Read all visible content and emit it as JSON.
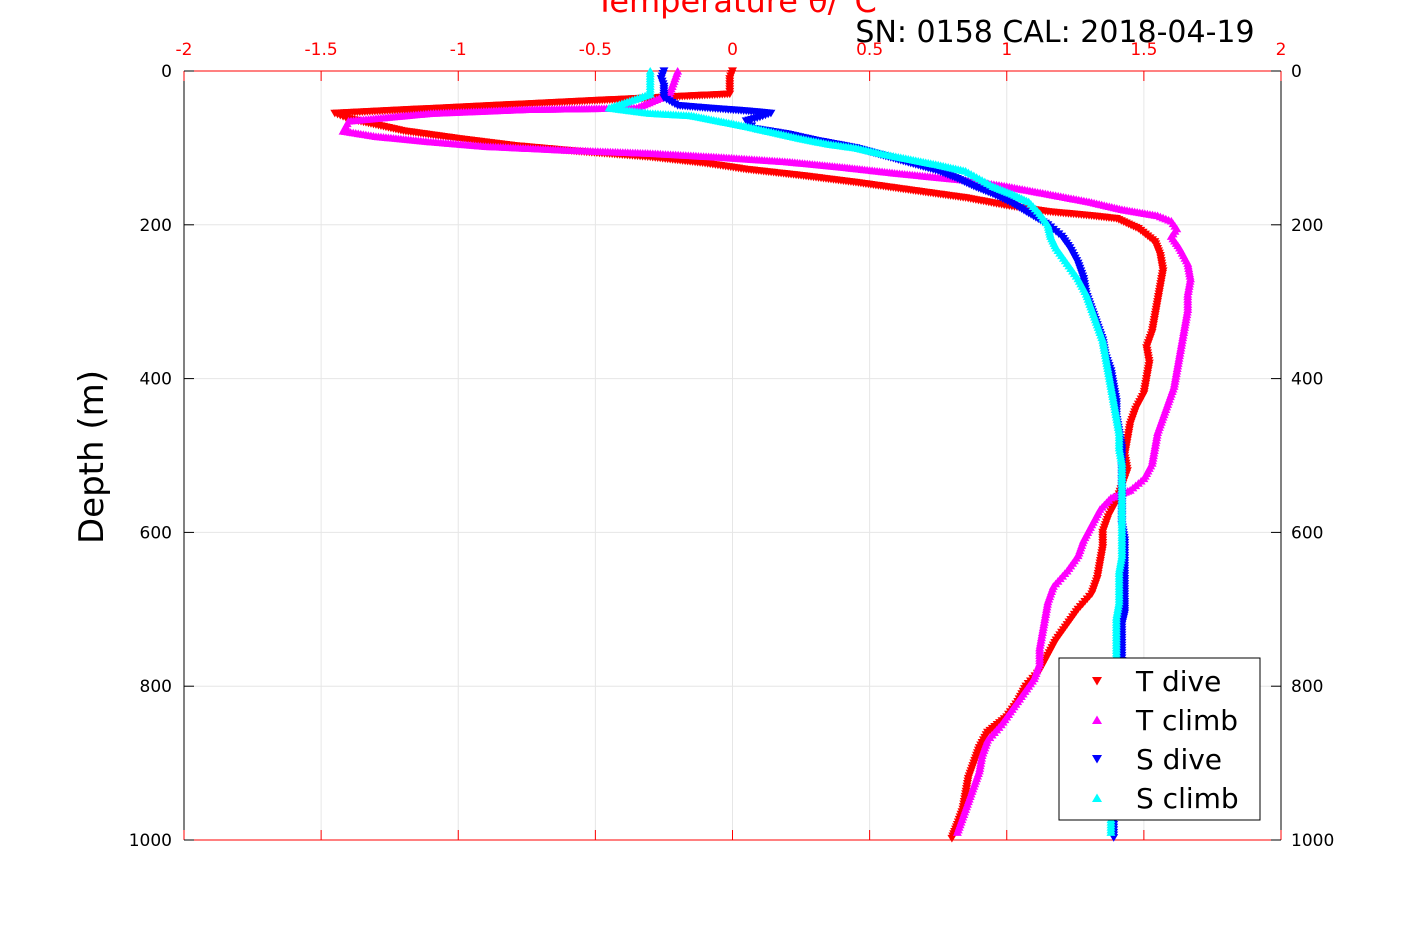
{
  "chart_data": {
    "type": "scatter",
    "title": "SN: 0158  CAL: 2018-04-19",
    "xlabel": "Temperature θ/°C",
    "ylabel": "Depth (m)",
    "xlim": [
      -2,
      2
    ],
    "ylim": [
      0,
      1000
    ],
    "y_reversed": true,
    "x_axis_location": "top",
    "xticks": [
      "-2",
      "-1.5",
      "-1",
      "-0.5",
      "0",
      "0.5",
      "1",
      "1.5",
      "2"
    ],
    "yticks": [
      "0",
      "200",
      "400",
      "600",
      "800",
      "1000"
    ],
    "grid": true,
    "legend_placement": "bottom-right",
    "series": [
      {
        "name": "T dive",
        "marker": "triangle-down",
        "color": "#ff0000",
        "points": [
          [
            0,
            0
          ],
          [
            -0.01,
            10
          ],
          [
            -0.01,
            20
          ],
          [
            -0.01,
            30
          ],
          [
            -1.45,
            55
          ],
          [
            -1.4,
            62
          ],
          [
            -1.3,
            70
          ],
          [
            -1.2,
            78
          ],
          [
            -1.0,
            88
          ],
          [
            -0.8,
            97
          ],
          [
            -0.55,
            105
          ],
          [
            -0.3,
            112
          ],
          [
            -0.1,
            120
          ],
          [
            0.05,
            128
          ],
          [
            0.25,
            136
          ],
          [
            0.45,
            145
          ],
          [
            0.65,
            155
          ],
          [
            0.85,
            165
          ],
          [
            1.0,
            175
          ],
          [
            1.15,
            183
          ],
          [
            1.3,
            188
          ],
          [
            1.4,
            192
          ],
          [
            1.48,
            205
          ],
          [
            1.54,
            222
          ],
          [
            1.56,
            240
          ],
          [
            1.57,
            260
          ],
          [
            1.56,
            280
          ],
          [
            1.55,
            300
          ],
          [
            1.54,
            320
          ],
          [
            1.53,
            340
          ],
          [
            1.51,
            360
          ],
          [
            1.52,
            380
          ],
          [
            1.51,
            400
          ],
          [
            1.5,
            420
          ],
          [
            1.47,
            440
          ],
          [
            1.45,
            460
          ],
          [
            1.44,
            480
          ],
          [
            1.43,
            500
          ],
          [
            1.44,
            520
          ],
          [
            1.42,
            540
          ],
          [
            1.4,
            560
          ],
          [
            1.37,
            580
          ],
          [
            1.35,
            600
          ],
          [
            1.35,
            620
          ],
          [
            1.34,
            640
          ],
          [
            1.33,
            660
          ],
          [
            1.31,
            680
          ],
          [
            1.26,
            700
          ],
          [
            1.22,
            720
          ],
          [
            1.18,
            740
          ],
          [
            1.15,
            760
          ],
          [
            1.12,
            780
          ],
          [
            1.07,
            800
          ],
          [
            1.04,
            820
          ],
          [
            1.0,
            840
          ],
          [
            0.93,
            860
          ],
          [
            0.9,
            880
          ],
          [
            0.88,
            900
          ],
          [
            0.86,
            920
          ],
          [
            0.85,
            940
          ],
          [
            0.84,
            960
          ],
          [
            0.82,
            980
          ],
          [
            0.8,
            998
          ]
        ]
      },
      {
        "name": "T climb",
        "marker": "triangle-up",
        "color": "#ff00ff",
        "points": [
          [
            -0.2,
            0
          ],
          [
            -0.21,
            10
          ],
          [
            -0.22,
            20
          ],
          [
            -0.23,
            30
          ],
          [
            -0.35,
            48
          ],
          [
            -0.75,
            50
          ],
          [
            -1.1,
            55
          ],
          [
            -1.4,
            65
          ],
          [
            -1.42,
            78
          ],
          [
            -1.3,
            85
          ],
          [
            -1.1,
            92
          ],
          [
            -0.9,
            98
          ],
          [
            -0.6,
            103
          ],
          [
            -0.3,
            107
          ],
          [
            -0.05,
            112
          ],
          [
            0.2,
            118
          ],
          [
            0.4,
            125
          ],
          [
            0.6,
            133
          ],
          [
            0.85,
            142
          ],
          [
            1.0,
            150
          ],
          [
            1.15,
            160
          ],
          [
            1.3,
            170
          ],
          [
            1.42,
            180
          ],
          [
            1.55,
            188
          ],
          [
            1.6,
            195
          ],
          [
            1.62,
            205
          ],
          [
            1.6,
            215
          ],
          [
            1.63,
            230
          ],
          [
            1.66,
            250
          ],
          [
            1.67,
            270
          ],
          [
            1.66,
            290
          ],
          [
            1.66,
            310
          ],
          [
            1.65,
            330
          ],
          [
            1.64,
            350
          ],
          [
            1.63,
            370
          ],
          [
            1.62,
            390
          ],
          [
            1.61,
            410
          ],
          [
            1.59,
            430
          ],
          [
            1.57,
            450
          ],
          [
            1.55,
            470
          ],
          [
            1.54,
            490
          ],
          [
            1.53,
            510
          ],
          [
            1.5,
            530
          ],
          [
            1.45,
            545
          ],
          [
            1.38,
            555
          ],
          [
            1.34,
            570
          ],
          [
            1.31,
            590
          ],
          [
            1.28,
            610
          ],
          [
            1.26,
            630
          ],
          [
            1.22,
            650
          ],
          [
            1.17,
            670
          ],
          [
            1.15,
            690
          ],
          [
            1.14,
            710
          ],
          [
            1.13,
            730
          ],
          [
            1.12,
            750
          ],
          [
            1.12,
            770
          ],
          [
            1.1,
            790
          ],
          [
            1.06,
            810
          ],
          [
            1.02,
            830
          ],
          [
            0.98,
            850
          ],
          [
            0.93,
            870
          ],
          [
            0.91,
            890
          ],
          [
            0.9,
            910
          ],
          [
            0.88,
            930
          ],
          [
            0.86,
            950
          ],
          [
            0.84,
            970
          ],
          [
            0.82,
            990
          ]
        ]
      },
      {
        "name": "S dive",
        "marker": "triangle-down",
        "color": "#0000ff",
        "points": [
          [
            -0.25,
            0
          ],
          [
            -0.26,
            10
          ],
          [
            -0.25,
            20
          ],
          [
            -0.25,
            35
          ],
          [
            -0.2,
            45
          ],
          [
            -0.1,
            48
          ],
          [
            0.05,
            52
          ],
          [
            0.14,
            55
          ],
          [
            0.1,
            60
          ],
          [
            0.05,
            65
          ],
          [
            0.08,
            75
          ],
          [
            0.2,
            82
          ],
          [
            0.3,
            90
          ],
          [
            0.45,
            100
          ],
          [
            0.55,
            110
          ],
          [
            0.65,
            120
          ],
          [
            0.75,
            130
          ],
          [
            0.82,
            140
          ],
          [
            0.88,
            150
          ],
          [
            0.95,
            160
          ],
          [
            1.02,
            172
          ],
          [
            1.08,
            185
          ],
          [
            1.15,
            200
          ],
          [
            1.2,
            215
          ],
          [
            1.23,
            230
          ],
          [
            1.26,
            250
          ],
          [
            1.28,
            270
          ],
          [
            1.29,
            290
          ],
          [
            1.31,
            310
          ],
          [
            1.33,
            330
          ],
          [
            1.35,
            350
          ],
          [
            1.36,
            370
          ],
          [
            1.38,
            390
          ],
          [
            1.39,
            410
          ],
          [
            1.4,
            430
          ],
          [
            1.4,
            450
          ],
          [
            1.41,
            470
          ],
          [
            1.42,
            490
          ],
          [
            1.42,
            510
          ],
          [
            1.42,
            530
          ],
          [
            1.42,
            550
          ],
          [
            1.42,
            570
          ],
          [
            1.42,
            590
          ],
          [
            1.43,
            610
          ],
          [
            1.43,
            630
          ],
          [
            1.43,
            650
          ],
          [
            1.43,
            670
          ],
          [
            1.43,
            690
          ],
          [
            1.43,
            705
          ],
          [
            1.42,
            720
          ],
          [
            1.42,
            740
          ],
          [
            1.42,
            760
          ],
          [
            1.42,
            780
          ],
          [
            1.42,
            800
          ],
          [
            1.41,
            820
          ],
          [
            1.41,
            840
          ],
          [
            1.41,
            860
          ],
          [
            1.41,
            880
          ],
          [
            1.41,
            900
          ],
          [
            1.4,
            920
          ],
          [
            1.4,
            940
          ],
          [
            1.39,
            960
          ],
          [
            1.39,
            980
          ],
          [
            1.39,
            997
          ]
        ]
      },
      {
        "name": "S climb",
        "marker": "triangle-up",
        "color": "#00ffff",
        "points": [
          [
            -0.3,
            0
          ],
          [
            -0.3,
            10
          ],
          [
            -0.3,
            20
          ],
          [
            -0.3,
            30
          ],
          [
            -0.45,
            48
          ],
          [
            -0.3,
            55
          ],
          [
            -0.15,
            58
          ],
          [
            -0.05,
            65
          ],
          [
            0.05,
            72
          ],
          [
            0.15,
            80
          ],
          [
            0.25,
            88
          ],
          [
            0.35,
            95
          ],
          [
            0.45,
            100
          ],
          [
            0.55,
            108
          ],
          [
            0.65,
            115
          ],
          [
            0.75,
            122
          ],
          [
            0.85,
            130
          ],
          [
            0.9,
            140
          ],
          [
            0.95,
            150
          ],
          [
            1.02,
            160
          ],
          [
            1.08,
            170
          ],
          [
            1.12,
            185
          ],
          [
            1.15,
            200
          ],
          [
            1.16,
            215
          ],
          [
            1.18,
            230
          ],
          [
            1.22,
            250
          ],
          [
            1.26,
            270
          ],
          [
            1.29,
            290
          ],
          [
            1.31,
            310
          ],
          [
            1.33,
            330
          ],
          [
            1.35,
            350
          ],
          [
            1.36,
            370
          ],
          [
            1.37,
            390
          ],
          [
            1.38,
            410
          ],
          [
            1.39,
            430
          ],
          [
            1.4,
            450
          ],
          [
            1.41,
            470
          ],
          [
            1.41,
            490
          ],
          [
            1.42,
            510
          ],
          [
            1.42,
            530
          ],
          [
            1.42,
            550
          ],
          [
            1.42,
            570
          ],
          [
            1.42,
            590
          ],
          [
            1.42,
            610
          ],
          [
            1.42,
            630
          ],
          [
            1.41,
            650
          ],
          [
            1.41,
            670
          ],
          [
            1.41,
            690
          ],
          [
            1.4,
            710
          ],
          [
            1.4,
            730
          ],
          [
            1.4,
            750
          ],
          [
            1.4,
            770
          ],
          [
            1.4,
            790
          ],
          [
            1.4,
            810
          ],
          [
            1.4,
            830
          ],
          [
            1.39,
            850
          ],
          [
            1.39,
            870
          ],
          [
            1.39,
            890
          ],
          [
            1.39,
            910
          ],
          [
            1.39,
            930
          ],
          [
            1.39,
            950
          ],
          [
            1.38,
            970
          ],
          [
            1.38,
            990
          ]
        ]
      }
    ],
    "colors": {
      "axis": "#ff0000",
      "grid": "#e6e6e6"
    }
  }
}
